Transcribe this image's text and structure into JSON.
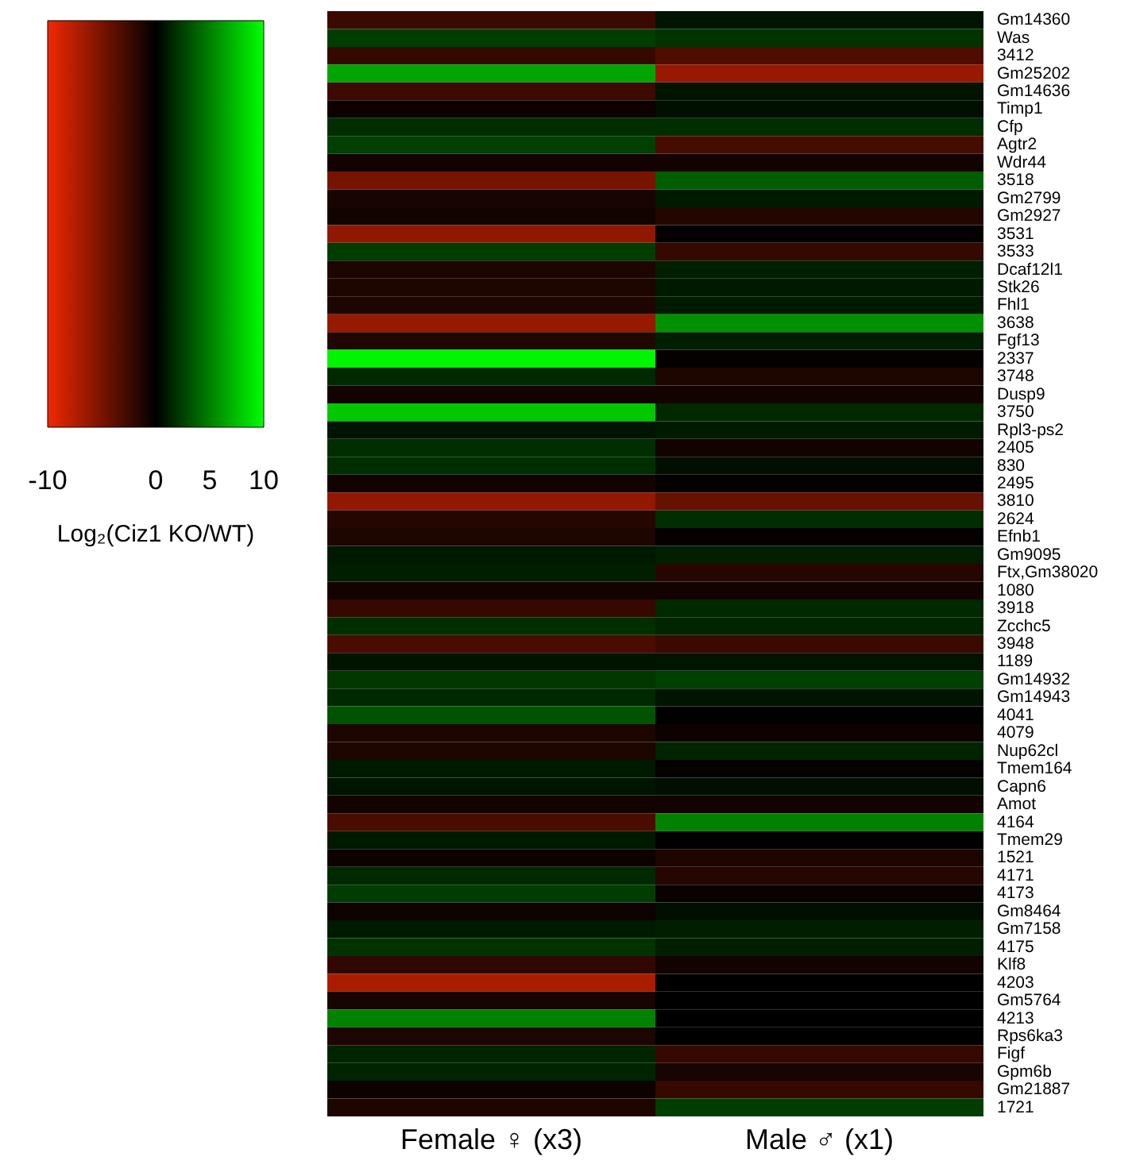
{
  "chart_data": {
    "type": "heatmap",
    "clabel": "Log₂(Ciz1 KO/WT)",
    "categories": [
      "Female ♀ (x3)",
      "Male ♂ (x1)"
    ],
    "y_categories": [
      "Gm14360",
      "Was",
      "3412",
      "Gm25202",
      "Gm14636",
      "Timp1",
      "Cfp",
      "Agtr2",
      "Wdr44",
      "3518",
      "Gm2799",
      "Gm2927",
      "3531",
      "3533",
      "Dcaf12l1",
      "Stk26",
      "Fhl1",
      "3638",
      "Fgf13",
      "2337",
      "3748",
      "Dusp9",
      "3750",
      "Rpl3-ps2",
      "2405",
      "830",
      "2495",
      "3810",
      "2624",
      "Efnb1",
      "Gm9095",
      "Ftx,Gm38020",
      "1080",
      "3918",
      "Zcchc5",
      "3948",
      "1189",
      "Gm14932",
      "Gm14943",
      "4041",
      "4079",
      "Nup62cl",
      "Tmem164",
      "Capn6",
      "Amot",
      "4164",
      "Tmem29",
      "1521",
      "4171",
      "4173",
      "Gm8464",
      "Gm7158",
      "4175",
      "Klf8",
      "4203",
      "Gm5764",
      "4213",
      "Rps6ka3",
      "Figf",
      "Gpm6b",
      "Gm21887",
      "1721"
    ],
    "cells": [
      [
        -2.4,
        0.8
      ],
      [
        2.4,
        2.0
      ],
      [
        -2.2,
        -3.3
      ],
      [
        6.5,
        -6.3
      ],
      [
        -2.5,
        0.8
      ],
      [
        -0.6,
        0.6
      ],
      [
        1.8,
        1.8
      ],
      [
        2.5,
        -2.9
      ],
      [
        -0.8,
        -0.8
      ],
      [
        -4.9,
        3.7
      ],
      [
        -1.0,
        1.0
      ],
      [
        -0.8,
        -1.4
      ],
      [
        -5.9,
        -0.2
      ],
      [
        2.4,
        -2.2
      ],
      [
        -1.2,
        1.2
      ],
      [
        -1.2,
        1.0
      ],
      [
        -1.2,
        1.0
      ],
      [
        -6.3,
        5.7
      ],
      [
        -1.4,
        1.2
      ],
      [
        9.6,
        -0.2
      ],
      [
        1.6,
        -1.2
      ],
      [
        -0.8,
        -0.8
      ],
      [
        7.8,
        1.6
      ],
      [
        0.8,
        1.0
      ],
      [
        1.8,
        -0.8
      ],
      [
        1.8,
        0.6
      ],
      [
        -0.8,
        -0.2
      ],
      [
        -6.1,
        -4.3
      ],
      [
        -1.6,
        1.8
      ],
      [
        -1.2,
        -0.2
      ],
      [
        1.0,
        1.2
      ],
      [
        1.2,
        -1.6
      ],
      [
        -0.8,
        -0.8
      ],
      [
        -2.2,
        1.6
      ],
      [
        1.8,
        1.4
      ],
      [
        -3.1,
        -2.4
      ],
      [
        0.8,
        0.8
      ],
      [
        2.2,
        2.5
      ],
      [
        1.6,
        0.8
      ],
      [
        3.3,
        0
      ],
      [
        -1.2,
        -0.6
      ],
      [
        -1.2,
        1.4
      ],
      [
        1.0,
        -0.2
      ],
      [
        0.8,
        0.6
      ],
      [
        -0.8,
        -0.8
      ],
      [
        -3.1,
        5.1
      ],
      [
        1.0,
        -0.1
      ],
      [
        -0.6,
        -1.2
      ],
      [
        1.6,
        -1.6
      ],
      [
        2.4,
        -0.4
      ],
      [
        -0.6,
        0.6
      ],
      [
        1.0,
        1.2
      ],
      [
        2.0,
        1.2
      ],
      [
        -2.0,
        -0.8
      ],
      [
        -7.1,
        0
      ],
      [
        -1.0,
        0
      ],
      [
        5.1,
        0
      ],
      [
        -1.2,
        0
      ],
      [
        1.4,
        -2.2
      ],
      [
        1.4,
        -1.0
      ],
      [
        -0.6,
        -2.2
      ],
      [
        -1.2,
        2.4
      ]
    ],
    "clim": [
      -10,
      10
    ],
    "cticks": [
      -10,
      0,
      5,
      10
    ]
  }
}
